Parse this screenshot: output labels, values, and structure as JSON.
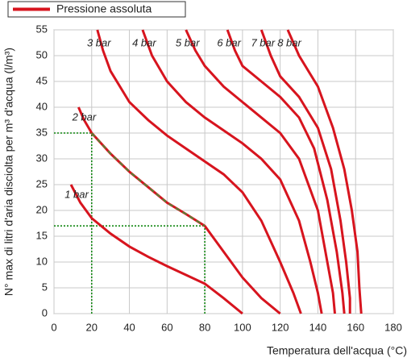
{
  "chart_data": {
    "type": "line",
    "legend": "Pressione assoluta",
    "color": "#d7141e",
    "x_label": "Temperatura dell'acqua (°C)",
    "y_label": "N° max di litri d'aria disciolta per m³ d'acqua (l/m³)",
    "xlim": [
      0,
      180
    ],
    "xticks": [
      0,
      20,
      40,
      60,
      80,
      100,
      120,
      140,
      160,
      180
    ],
    "ylim": [
      0,
      55
    ],
    "yticks": [
      0,
      5,
      10,
      15,
      20,
      25,
      30,
      35,
      40,
      45,
      50,
      55
    ],
    "grid": true,
    "guides": [
      {
        "x": 20,
        "y": 35
      },
      {
        "x": 80,
        "y": 17
      }
    ],
    "series": [
      {
        "name": "1 bar",
        "x": [
          9,
          14,
          20,
          30,
          40,
          50,
          60,
          70,
          80,
          90,
          100
        ],
        "values": [
          25,
          21.5,
          18.5,
          15.5,
          13,
          11,
          9.2,
          7.5,
          5.8,
          3,
          0
        ]
      },
      {
        "name": "2 bar",
        "x": [
          13,
          16,
          20,
          30,
          40,
          50,
          60,
          70,
          80,
          90,
          100,
          110,
          120
        ],
        "values": [
          40,
          37.5,
          35,
          31,
          27.5,
          24.5,
          21.5,
          19.3,
          17,
          12,
          7,
          3,
          0
        ]
      },
      {
        "name": "3 bar",
        "x": [
          23,
          26,
          30,
          40,
          50,
          60,
          70,
          80,
          90,
          100,
          110,
          120,
          127,
          131
        ],
        "values": [
          55,
          51,
          47,
          41,
          37.5,
          34.5,
          32,
          29.5,
          27,
          23.5,
          18,
          10,
          4,
          0
        ]
      },
      {
        "name": "4 bar",
        "x": [
          47,
          52,
          60,
          70,
          80,
          90,
          100,
          110,
          120,
          130,
          136,
          140,
          142
        ],
        "values": [
          55,
          50,
          45,
          41,
          38,
          35.5,
          33,
          30,
          26,
          18,
          10,
          4,
          0
        ]
      },
      {
        "name": "5 bar",
        "x": [
          70,
          75,
          80,
          90,
          100,
          110,
          120,
          130,
          140,
          145,
          148,
          149
        ],
        "values": [
          55,
          51,
          48,
          44,
          41,
          38,
          35,
          30,
          20,
          10,
          4,
          0
        ]
      },
      {
        "name": "6 bar",
        "x": [
          92,
          96,
          100,
          110,
          120,
          130,
          138,
          145,
          150,
          153,
          154
        ],
        "values": [
          55,
          51,
          48,
          45,
          42,
          38,
          32,
          22,
          12,
          4,
          0
        ]
      },
      {
        "name": "7 bar",
        "x": [
          110,
          115,
          120,
          130,
          140,
          147,
          152,
          155,
          157,
          157
        ],
        "values": [
          55,
          50,
          46,
          42,
          36,
          28,
          18,
          10,
          3,
          0
        ]
      },
      {
        "name": "8 bar",
        "x": [
          124,
          130,
          140,
          148,
          154,
          158,
          161,
          162,
          163
        ],
        "values": [
          55,
          50,
          44,
          36,
          28,
          20,
          12,
          5,
          0
        ]
      }
    ]
  }
}
